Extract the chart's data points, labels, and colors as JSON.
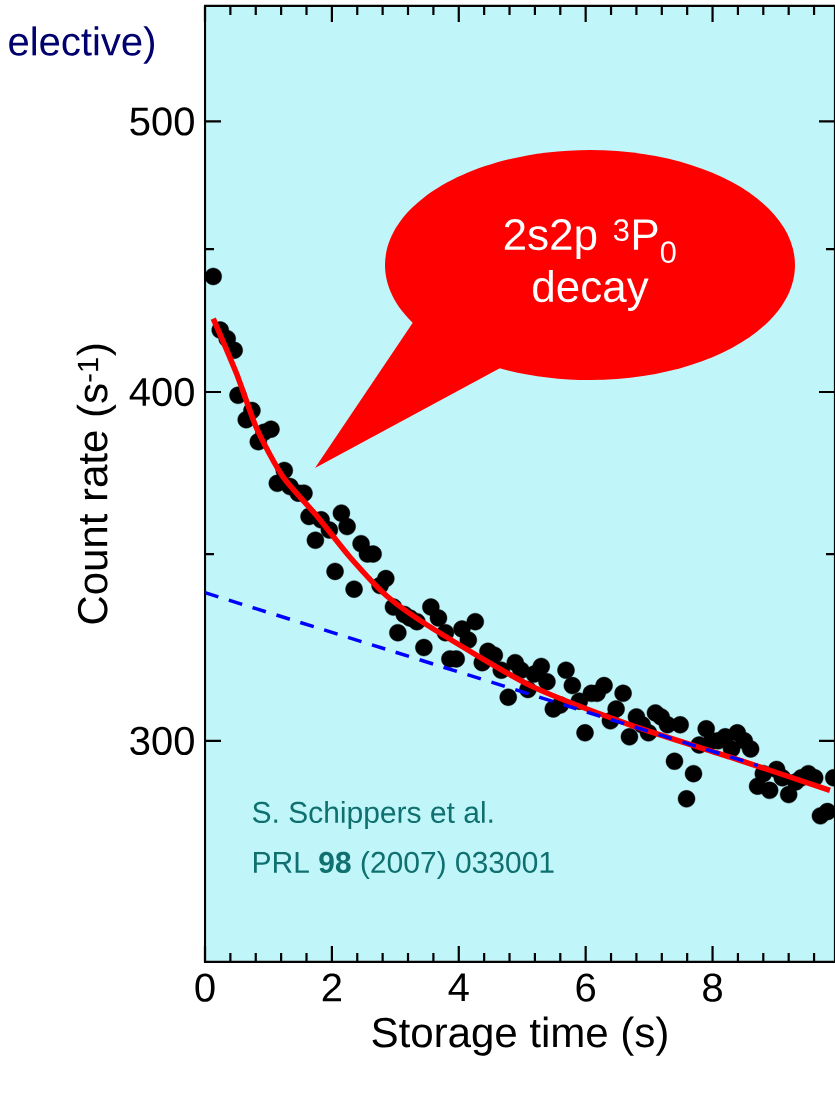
{
  "chart_data": {
    "type": "scatter",
    "xlabel": "Storage time (s)",
    "ylabel": "Count rate (s$^{-1}$)",
    "log": "y",
    "xlim": [
      0,
      9.93
    ],
    "ylim": [
      250,
      550
    ],
    "xticks": [
      0,
      {
        "value": 0.4,
        "label": null
      },
      {
        "value": 0.8,
        "label": null
      },
      {
        "value": 1.2,
        "label": null
      },
      {
        "value": 1.6,
        "label": null
      },
      2,
      {
        "value": 2.4,
        "label": null
      },
      {
        "value": 2.8,
        "label": null
      },
      {
        "value": 3.2,
        "label": null
      },
      {
        "value": 3.6,
        "label": null
      },
      4,
      {
        "value": 4.4,
        "label": null
      },
      {
        "value": 4.8,
        "label": null
      },
      {
        "value": 5.2,
        "label": null
      },
      {
        "value": 5.6,
        "label": null
      },
      6,
      {
        "value": 6.4,
        "label": null
      },
      {
        "value": 6.8,
        "label": null
      },
      {
        "value": 7.2,
        "label": null
      },
      {
        "value": 7.6,
        "label": null
      },
      8,
      {
        "value": 8.4,
        "label": null
      },
      {
        "value": 8.8,
        "label": null
      },
      {
        "value": 9.2,
        "label": null
      },
      {
        "value": 9.6,
        "label": null
      }
    ],
    "yticks": [
      300,
      {
        "value": 350,
        "label": null
      },
      400,
      {
        "value": 450,
        "label": null
      },
      500
    ],
    "series": [
      {
        "marker": "circle",
        "color": "#000000",
        "x": [
          0.13,
          0.24,
          0.35,
          0.46,
          0.52,
          0.65,
          0.74,
          0.84,
          0.93,
          1.04,
          1.14,
          1.25,
          1.34,
          1.47,
          1.56,
          1.64,
          1.74,
          1.83,
          1.96,
          2.05,
          2.15,
          2.24,
          2.35,
          2.46,
          2.56,
          2.65,
          2.76,
          2.85,
          2.97,
          3.04,
          3.14,
          3.23,
          3.34,
          3.45,
          3.56,
          3.68,
          3.79,
          3.86,
          3.96,
          4.05,
          4.15,
          4.26,
          4.37,
          4.46,
          4.56,
          4.67,
          4.78,
          4.89,
          4.98,
          5.09,
          5.19,
          5.3,
          5.39,
          5.49,
          5.6,
          5.69,
          5.79,
          5.9,
          5.99,
          6.09,
          6.18,
          6.29,
          6.39,
          6.48,
          6.59,
          6.69,
          6.8,
          6.89,
          6.99,
          7.1,
          7.19,
          7.29,
          7.4,
          7.49,
          7.59,
          7.7,
          7.79,
          7.9,
          7.99,
          8.09,
          8.2,
          8.3,
          8.39,
          8.5,
          8.6,
          8.71,
          8.8,
          8.9,
          9.01,
          9.1,
          9.2,
          9.31,
          9.4,
          9.51,
          9.61,
          9.7,
          9.81,
          9.91
        ],
        "values": [
          440,
          421,
          418,
          414,
          399,
          391,
          394,
          384,
          387,
          388,
          371,
          375,
          370,
          368,
          368,
          361,
          354,
          360,
          357,
          345,
          362,
          358,
          340,
          353,
          350,
          350,
          341,
          343,
          335,
          328,
          333,
          332,
          331,
          324,
          335,
          332,
          328,
          321,
          321,
          329,
          326,
          331,
          320,
          323,
          322,
          318,
          311,
          320,
          318,
          313,
          317,
          319,
          315,
          308,
          309,
          318,
          314,
          310,
          302,
          312,
          312,
          314,
          305,
          308,
          312,
          301,
          306,
          304,
          302,
          307,
          306,
          304,
          295,
          304,
          286,
          292,
          299,
          303,
          300,
          300,
          301,
          298,
          302,
          300,
          298,
          289,
          292,
          288,
          293,
          291,
          287,
          290,
          291,
          292,
          291,
          282,
          283,
          291
        ]
      },
      {
        "type": "line",
        "line_style": "solid",
        "color": "#ff0000",
        "x": [
          0.13,
          0.5,
          0.82,
          1.23,
          1.77,
          2.29,
          2.87,
          3.6,
          5.13,
          6.7,
          8.28,
          9.85
        ],
        "values": [
          425,
          406,
          388,
          373,
          361,
          349,
          338,
          329,
          314,
          304,
          296,
          288
        ]
      },
      {
        "type": "line",
        "line_style": "dashed",
        "color": "#0000ff",
        "x": [
          0,
          8.71
        ],
        "values": [
          339,
          294
        ]
      }
    ],
    "annotations": [
      "elective)",
      "2s2p $^{3}$P$_{0}$ decay",
      "S. Schippers et al.",
      "PRL **98** (2007) 033001"
    ]
  }
}
